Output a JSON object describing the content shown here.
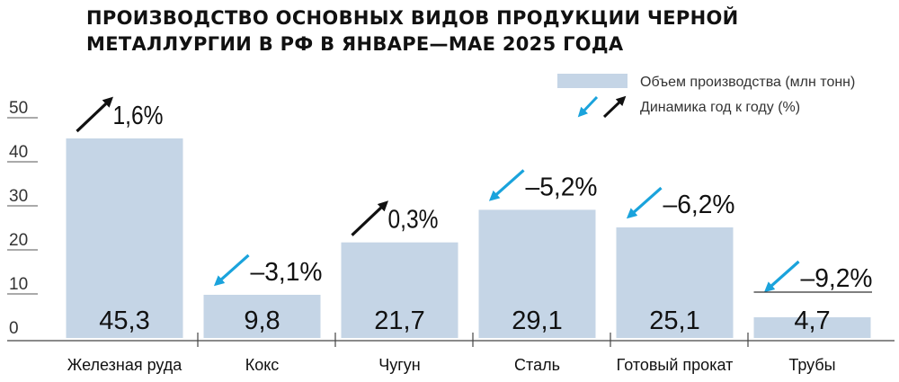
{
  "title_line1": "ПРОИЗВОДСТВО ОСНОВНЫХ ВИДОВ ПРОДУКЦИИ ЧЕРНОЙ",
  "title_line2": "МЕТАЛЛУРГИИ В РФ В ЯНВАРЕ—МАЕ 2025 ГОДА",
  "colors": {
    "bar": "#c5d5e6",
    "down_arrow": "#1aa3dc",
    "up_arrow": "#111111"
  },
  "chart_data": {
    "type": "bar",
    "title": "ПРОИЗВОДСТВО ОСНОВНЫХ ВИДОВ ПРОДУКЦИИ ЧЕРНОЙ МЕТАЛЛУРГИИ В РФ В ЯНВАРЕ—МАЕ 2025 ГОДА",
    "categories": [
      "Железная руда",
      "Кокс",
      "Чугун",
      "Сталь",
      "Готовый прокат",
      "Трубы"
    ],
    "series": [
      {
        "name": "Объем производства (млн тонн)",
        "values": [
          45.3,
          9.8,
          21.7,
          29.1,
          25.1,
          4.7
        ]
      }
    ],
    "value_labels": [
      "45,3",
      "9,8",
      "21,7",
      "29,1",
      "25,1",
      "4,7"
    ],
    "yoy": [
      {
        "label": "1,6%",
        "direction": "up"
      },
      {
        "label": "–3,1%",
        "direction": "down"
      },
      {
        "label": "0,3%",
        "direction": "up"
      },
      {
        "label": "–5,2%",
        "direction": "down"
      },
      {
        "label": "–6,2%",
        "direction": "down"
      },
      {
        "label": "–9,2%",
        "direction": "down"
      }
    ],
    "yoy_legend": "Динамика год к году (%)",
    "ylim": [
      0,
      50
    ],
    "yticks": [
      0,
      10,
      20,
      30,
      40,
      50
    ],
    "legend_position": "top-right"
  }
}
